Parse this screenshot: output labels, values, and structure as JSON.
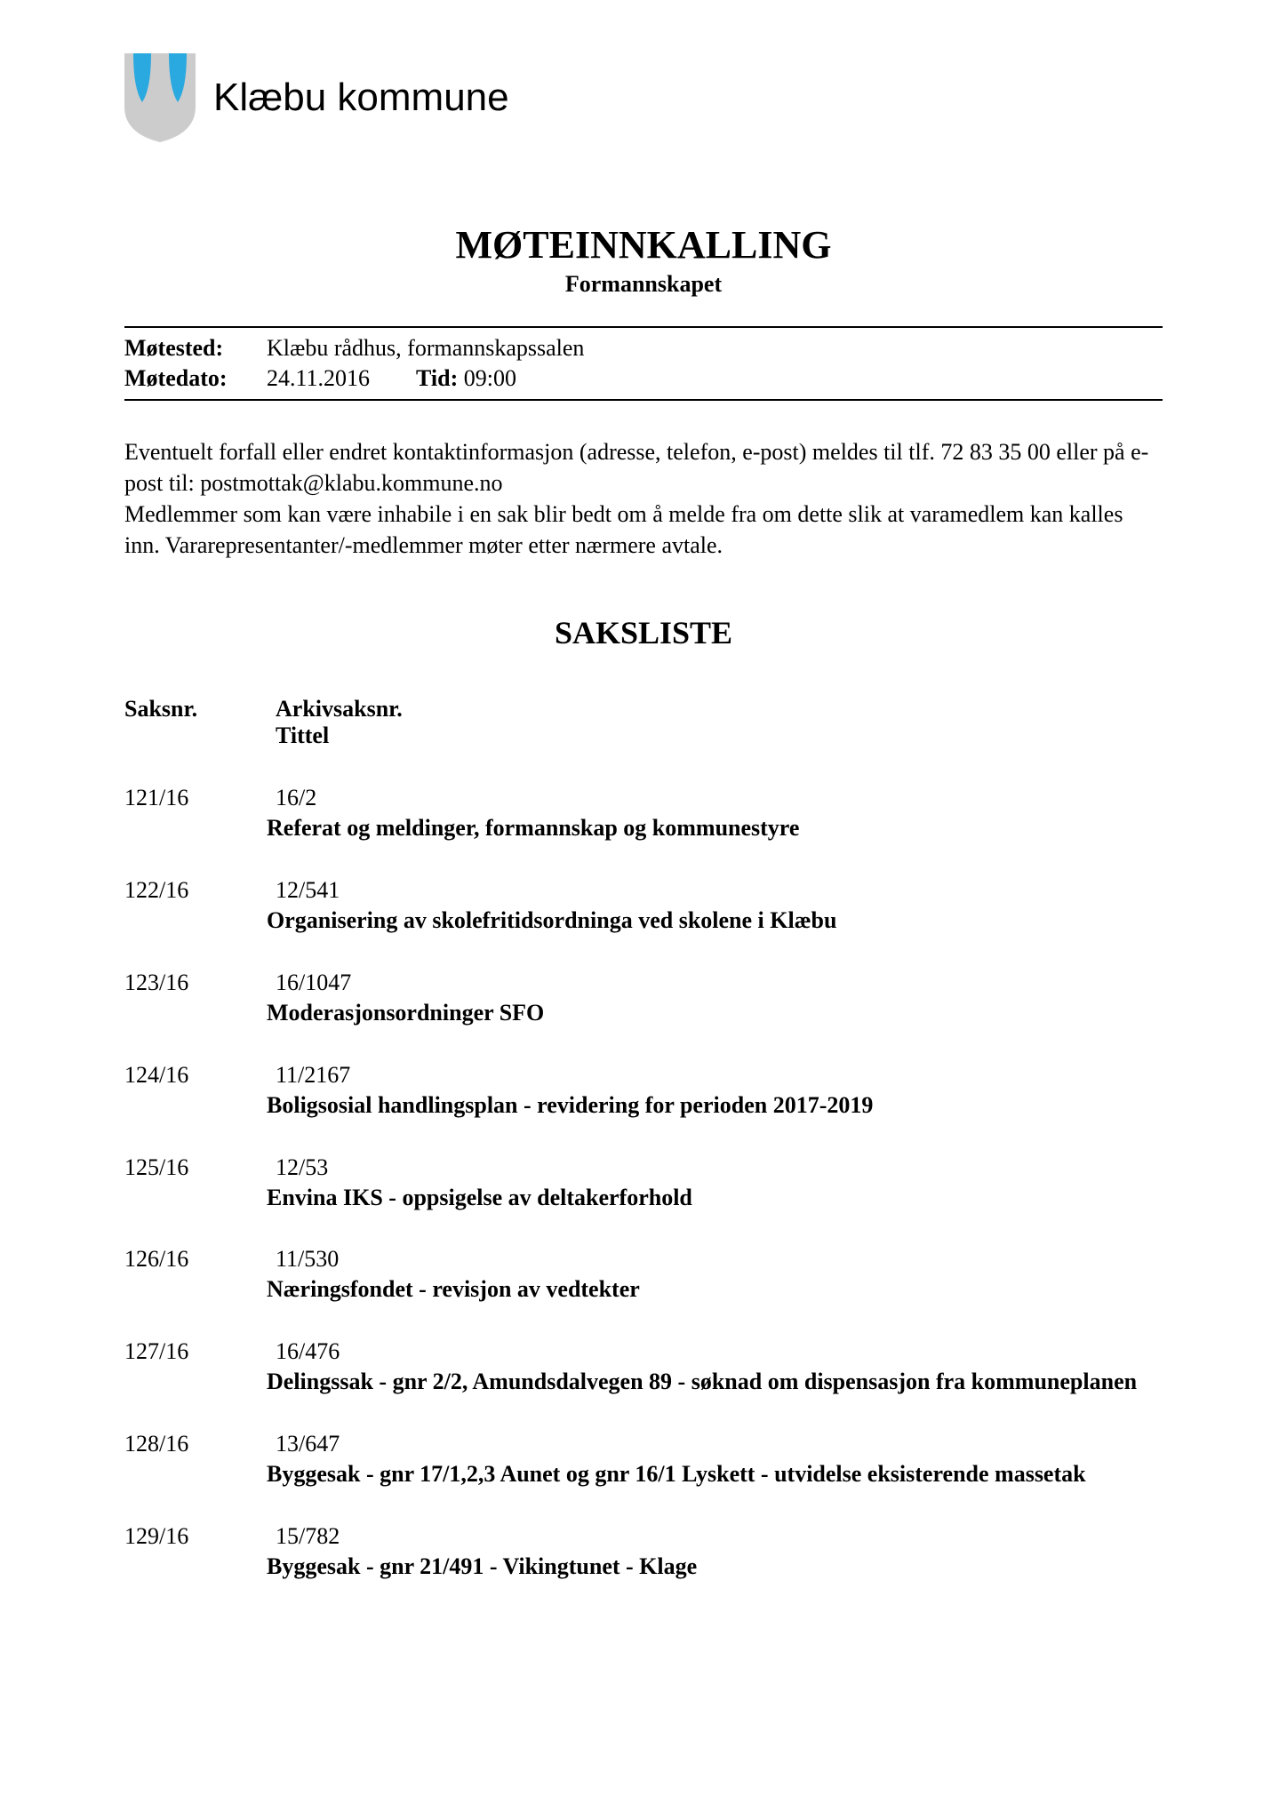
{
  "organization": "Klæbu kommune",
  "logo": {
    "shield_bg": "#cccccc",
    "drop_color": "#2aa9e0"
  },
  "mainTitle": "MØTEINNKALLING",
  "subtitle": "Formannskapet",
  "meetingInfo": {
    "motestedLabel": "Møtested:",
    "motested": "Klæbu rådhus, formannskapssalen",
    "motedatoLabel": "Møtedato:",
    "motedato": "24.11.2016",
    "tidLabel": "Tid:",
    "tid": "09:00"
  },
  "bodyText": "Eventuelt forfall eller endret kontaktinformasjon (adresse, telefon, e-post) meldes til tlf. 72 83 35 00 eller på e-post til: postmottak@klabu.kommune.no\nMedlemmer som kan være inhabile i en sak blir bedt om å melde fra om dette slik at varamedlem kan kalles inn. Vararepresentanter/-medlemmer møter etter nærmere avtale.",
  "sectionTitle": "SAKSLISTE",
  "headers": {
    "saksnr": "Saksnr.",
    "arkiv": "Arkivsaksnr.",
    "tittel": "Tittel"
  },
  "cases": [
    {
      "saksnr": "121/16",
      "arkiv": "16/2",
      "tittel": "Referat og meldinger, formannskap og kommunestyre"
    },
    {
      "saksnr": "122/16",
      "arkiv": "12/541",
      "tittel": "Organisering av skolefritidsordninga ved skolene i Klæbu"
    },
    {
      "saksnr": "123/16",
      "arkiv": "16/1047",
      "tittel": "Moderasjonsordninger SFO"
    },
    {
      "saksnr": "124/16",
      "arkiv": "11/2167",
      "tittel": "Boligsosial handlingsplan - revidering for perioden 2017-2019"
    },
    {
      "saksnr": "125/16",
      "arkiv": "12/53",
      "tittel": "Envina IKS - oppsigelse av deltakerforhold"
    },
    {
      "saksnr": "126/16",
      "arkiv": "11/530",
      "tittel": "Næringsfondet - revisjon av vedtekter"
    },
    {
      "saksnr": "127/16",
      "arkiv": "16/476",
      "tittel": "Delingssak - gnr 2/2, Amundsdalvegen 89 - søknad om dispensasjon fra kommuneplanen"
    },
    {
      "saksnr": "128/16",
      "arkiv": "13/647",
      "tittel": "Byggesak - gnr 17/1,2,3 Aunet og gnr 16/1 Lyskett - utvidelse eksisterende massetak"
    },
    {
      "saksnr": "129/16",
      "arkiv": "15/782",
      "tittel": "Byggesak - gnr 21/491 - Vikingtunet - Klage"
    }
  ]
}
